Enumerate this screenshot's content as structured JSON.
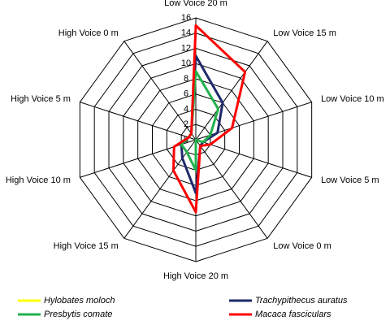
{
  "chart_data": {
    "type": "radar",
    "categories": [
      "Low Voice 20 m",
      "Low Voice 15 m",
      "Low Voice 10 m",
      "Low Voice 5 m",
      "Low Voice 0 m",
      "High Voice 20 m",
      "High Voice 15 m",
      "High Voice 10 m",
      "High Voice 5 m",
      "High Voice 0 m"
    ],
    "ylim": [
      0,
      16
    ],
    "yticks": [
      0,
      2,
      4,
      6,
      8,
      10,
      12,
      14,
      16
    ],
    "grid": true,
    "series": [
      {
        "name": "Hylobates moloch",
        "color": "#ffff00",
        "values": [
          0,
          0,
          0,
          0,
          0,
          0,
          0,
          0,
          0,
          0
        ]
      },
      {
        "name": "Trachypithecus auratus",
        "color": "#1f2a6b",
        "values": [
          11,
          6,
          3,
          1,
          1,
          7,
          3,
          2,
          1,
          1
        ]
      },
      {
        "name": "Presbytis comate",
        "color": "#22b14c",
        "values": [
          9,
          5,
          2,
          1,
          0,
          4,
          2,
          2,
          1,
          1
        ]
      },
      {
        "name": "Macaca fasciculars",
        "color": "#ff0000",
        "values": [
          15,
          11,
          5,
          2,
          1,
          9.5,
          5,
          3,
          1,
          1
        ]
      }
    ]
  }
}
